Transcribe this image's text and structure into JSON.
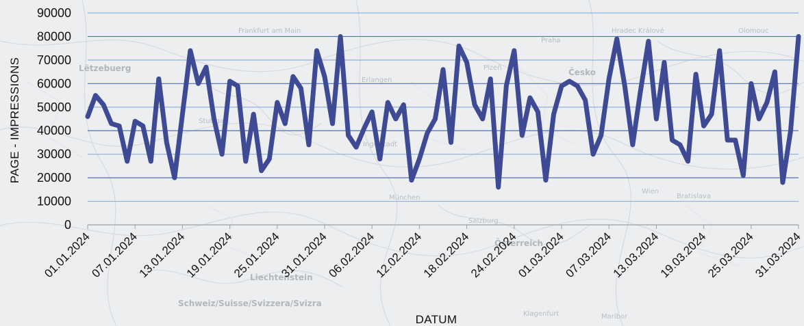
{
  "colors": {
    "line": "#3f4a94",
    "grid": "#8fb1dd",
    "grid_strong": "#4f6fbf",
    "background": "#eceef0"
  },
  "map_labels": [
    "Lëtzebuerg",
    "Frankfurt am Main",
    "Praha",
    "Česko",
    "Erlangen",
    "Plzeň",
    "München",
    "Österreich",
    "Wien",
    "Bratislava",
    "Liechtenstein",
    "Schweiz/Suisse/Svizzera/Svizra",
    "Klagenfurt",
    "Maribor",
    "Hradec Králové",
    "Olomouc",
    "Stuttgart",
    "Ingolstadt",
    "Salzburg"
  ],
  "chart_data": {
    "type": "line",
    "title": "",
    "xlabel": "DATUM",
    "ylabel": "PAGE - IMPRESSIONS",
    "ylim": [
      0,
      90000
    ],
    "yticks": [
      0,
      10000,
      20000,
      30000,
      40000,
      50000,
      60000,
      70000,
      80000,
      90000
    ],
    "xtick_labels": [
      "01.01.2024",
      "07.01.2024",
      "13.01.2024",
      "19.01.2024",
      "25.01.2024",
      "31.01.2024",
      "06.02.2024",
      "12.02.2024",
      "18.02.2024",
      "24.02.2024",
      "01.03.2024",
      "07.03.2024",
      "13.03.2024",
      "19.03.2024",
      "25.03.2024",
      "31.03.2024"
    ],
    "grid": true,
    "legend": "none",
    "series": [
      {
        "x_start": "01.01.2024",
        "x_end": "31.03.2024",
        "values": [
          46000,
          55000,
          51000,
          43000,
          42000,
          27000,
          44000,
          42000,
          27000,
          62000,
          35000,
          20000,
          47000,
          74000,
          60000,
          67000,
          45000,
          30000,
          61000,
          59000,
          27000,
          47000,
          23000,
          28000,
          52000,
          43000,
          63000,
          58000,
          34000,
          74000,
          63000,
          43000,
          80000,
          38000,
          33000,
          41000,
          48000,
          28000,
          52000,
          45000,
          51000,
          19000,
          28000,
          39000,
          45000,
          66000,
          35000,
          76000,
          69000,
          51000,
          45000,
          62000,
          16000,
          59000,
          74000,
          38000,
          54000,
          48000,
          19000,
          47000,
          59000,
          61000,
          59000,
          53000,
          30000,
          38000,
          62000,
          79000,
          59000,
          34000,
          57000,
          78000,
          45000,
          69000,
          36000,
          34000,
          27000,
          64000,
          42000,
          47000,
          74000,
          36000,
          36000,
          21000,
          60000,
          45000,
          52000,
          65000,
          18000,
          40000,
          80000
        ]
      }
    ]
  }
}
